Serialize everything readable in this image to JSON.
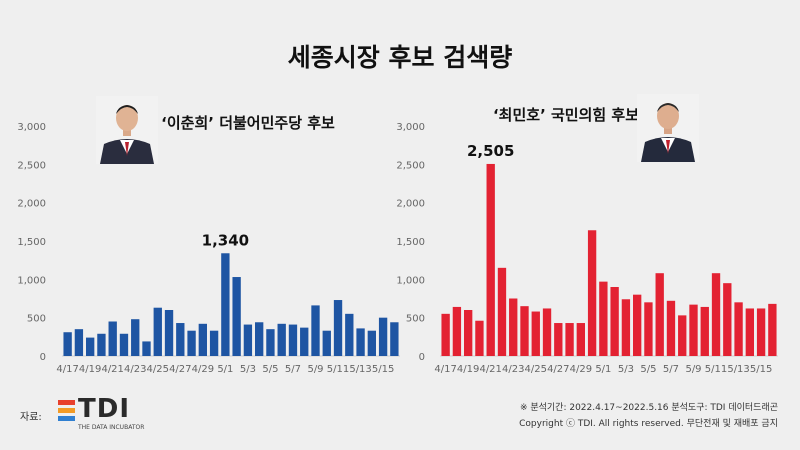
{
  "title": "세종시장 후보 검색량",
  "source_label": "자료:",
  "logo": {
    "name": "TDI",
    "subtitle": "THE DATA INCUBATOR"
  },
  "footer": {
    "period": "※ 분석기간: 2022.4.17~2022.5.16   분석도구: TDI 데이터드래곤",
    "copyright": "Copyright ⓒ TDI. All rights reserved. 무단전재 및 재배포 금지"
  },
  "colors": {
    "left_bar": "#1e55a3",
    "right_bar": "#e32232",
    "background": "#efefef"
  },
  "chart_data": [
    {
      "type": "bar",
      "title": "‘이춘희’ 더불어민주당 후보",
      "x_ticks": [
        "4/17",
        "4/19",
        "4/21",
        "4/23",
        "4/25",
        "4/27",
        "4/29",
        "5/1",
        "5/3",
        "5/5",
        "5/7",
        "5/9",
        "5/11",
        "5/13",
        "5/15"
      ],
      "y_ticks": [
        "0",
        "500",
        "1,000",
        "1,500",
        "2,000",
        "2,500",
        "3,000"
      ],
      "ylim": [
        0,
        3000
      ],
      "x": [
        "4/17",
        "4/18",
        "4/19",
        "4/20",
        "4/21",
        "4/22",
        "4/23",
        "4/24",
        "4/25",
        "4/26",
        "4/27",
        "4/28",
        "4/29",
        "4/30",
        "5/1",
        "5/2",
        "5/3",
        "5/4",
        "5/5",
        "5/6",
        "5/7",
        "5/8",
        "5/9",
        "5/10",
        "5/11",
        "5/12",
        "5/13",
        "5/14",
        "5/15",
        "5/16"
      ],
      "values": [
        310,
        350,
        240,
        290,
        450,
        290,
        480,
        190,
        630,
        600,
        430,
        330,
        420,
        330,
        1340,
        1030,
        410,
        440,
        350,
        420,
        410,
        370,
        660,
        330,
        730,
        550,
        360,
        330,
        500,
        440
      ],
      "peak_label": "1,340",
      "peak_index": 14,
      "color": "#1e55a3"
    },
    {
      "type": "bar",
      "title": "‘최민호’ 국민의힘 후보",
      "x_ticks": [
        "4/17",
        "4/19",
        "4/21",
        "4/23",
        "4/25",
        "4/27",
        "4/29",
        "5/1",
        "5/3",
        "5/5",
        "5/7",
        "5/9",
        "5/11",
        "5/13",
        "5/15"
      ],
      "y_ticks": [
        "0",
        "500",
        "1,000",
        "1,500",
        "2,000",
        "2,500",
        "3,000"
      ],
      "ylim": [
        0,
        3000
      ],
      "x": [
        "4/17",
        "4/18",
        "4/19",
        "4/20",
        "4/21",
        "4/22",
        "4/23",
        "4/24",
        "4/25",
        "4/26",
        "4/27",
        "4/28",
        "4/29",
        "4/30",
        "5/1",
        "5/2",
        "5/3",
        "5/4",
        "5/5",
        "5/6",
        "5/7",
        "5/8",
        "5/9",
        "5/10",
        "5/11",
        "5/12",
        "5/13",
        "5/14",
        "5/15",
        "5/16"
      ],
      "values": [
        550,
        640,
        600,
        460,
        2505,
        1150,
        750,
        650,
        580,
        620,
        430,
        430,
        430,
        1640,
        970,
        900,
        740,
        800,
        700,
        1080,
        720,
        530,
        670,
        640,
        1080,
        950,
        700,
        620,
        620,
        680
      ],
      "peak_label": "2,505",
      "peak_index": 4,
      "color": "#e32232"
    }
  ]
}
